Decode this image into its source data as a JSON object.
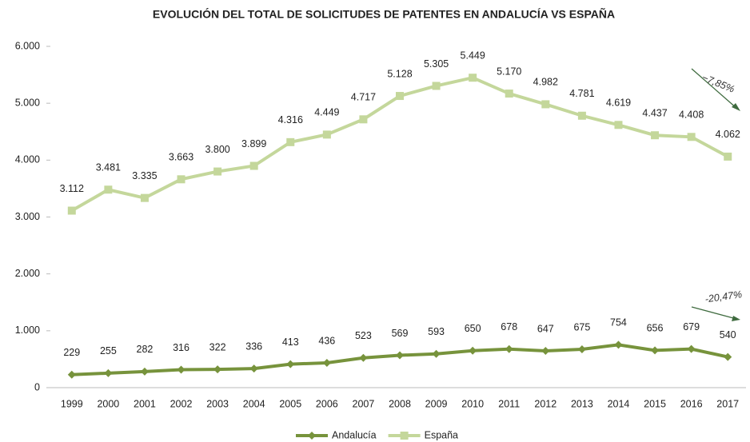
{
  "chart_data": {
    "type": "line",
    "title": "EVOLUCIÓN DEL TOTAL DE SOLICITUDES DE PATENTES EN ANDALUCÍA  VS ESPAÑA",
    "categories": [
      "1999",
      "2000",
      "2001",
      "2002",
      "2003",
      "2004",
      "2005",
      "2006",
      "2007",
      "2008",
      "2009",
      "2010",
      "2011",
      "2012",
      "2013",
      "2014",
      "2015",
      "2016",
      "2017"
    ],
    "series": [
      {
        "name": "Andalucía",
        "color": "#77933c",
        "marker": "diamond",
        "values": [
          229,
          255,
          282,
          316,
          322,
          336,
          413,
          436,
          523,
          569,
          593,
          650,
          678,
          647,
          675,
          754,
          656,
          679,
          540
        ]
      },
      {
        "name": "España",
        "color": "#c4d79b",
        "marker": "square",
        "values": [
          3112,
          3481,
          3335,
          3663,
          3800,
          3899,
          4316,
          4449,
          4717,
          5128,
          5305,
          5449,
          5170,
          4982,
          4781,
          4619,
          4437,
          4408,
          4062
        ],
        "value_labels": [
          "3.112",
          "3.481",
          "3.335",
          "3.663",
          "3.800",
          "3.899",
          "4.316",
          "4.449",
          "4.717",
          "5.128",
          "5.305",
          "5.449",
          "5.170",
          "4.982",
          "4.781",
          "4.619",
          "4.437",
          "4.408",
          "4.062"
        ]
      }
    ],
    "ylim": [
      0,
      6000
    ],
    "yticks": [
      0,
      {
        "value": 1000,
        "label": "1.000"
      },
      {
        "value": 2000,
        "label": "2.000"
      },
      {
        "value": 3000,
        "label": "3.000"
      },
      {
        "value": 4000,
        "label": "4.000"
      },
      {
        "value": 5000,
        "label": "5.000"
      },
      {
        "value": 6000,
        "label": "6.000"
      }
    ],
    "annotations": [
      "−7,85%",
      "-20,47%"
    ],
    "legend": "bottom"
  }
}
